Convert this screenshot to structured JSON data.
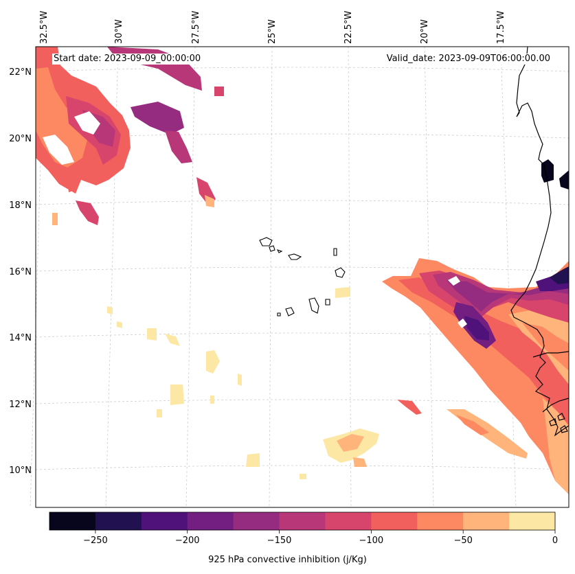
{
  "map": {
    "start_date_text": "Start date: 2023-09-09_00:00:00",
    "valid_date_text": "Valid_date: 2023-09-09T06:00:00.00",
    "lon_labels": [
      "32.5°W",
      "30°W",
      "27.5°W",
      "25°W",
      "22.5°W",
      "20°W",
      "17.5°W"
    ],
    "lat_labels": [
      "22°N",
      "20°N",
      "18°N",
      "16°N",
      "14°N",
      "12°N",
      "10°N"
    ],
    "colors": {
      "coastline": "#000000",
      "grid": "#cccccc",
      "frame": "#000000"
    },
    "icons": [
      "cape-verde-islands",
      "west-africa-coastline"
    ]
  },
  "colorbar": {
    "label": "925 hPa convective inhibition (j/Kg)",
    "ticks": [
      "−250",
      "−200",
      "−150",
      "−100",
      "−50",
      "0"
    ],
    "tick_values": [
      -250,
      -200,
      -150,
      -100,
      -50,
      0
    ],
    "vmin": -275,
    "vmax": 0,
    "levels": [
      -275,
      -250,
      -225,
      -200,
      -175,
      -150,
      -125,
      -100,
      -75,
      -50,
      -25,
      0
    ],
    "colors": [
      "#07061c",
      "#221150",
      "#4f127b",
      "#721f81",
      "#962c80",
      "#b73779",
      "#d8456c",
      "#f1605d",
      "#fc8961",
      "#feb47b",
      "#fde7a4"
    ]
  }
}
